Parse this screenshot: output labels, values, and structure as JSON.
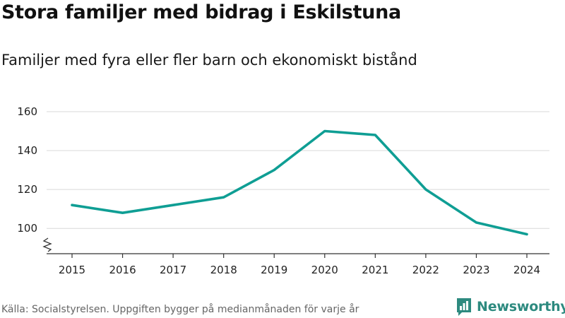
{
  "header": {
    "title": "Stora familjer med bidrag i Eskilstuna",
    "subtitle": "Familjer med fyra eller fler barn och ekonomiskt bistånd"
  },
  "footer": {
    "source": "Källa: Socialstyrelsen. Uppgiften bygger på medianmånaden för varje år",
    "brand": "Newsworthy"
  },
  "colors": {
    "line": "#0f9e94",
    "grid": "#d9d9d9",
    "axis": "#333333",
    "brand": "#2d8a7f"
  },
  "chart_data": {
    "type": "line",
    "title": "Stora familjer med bidrag i Eskilstuna",
    "subtitle": "Familjer med fyra eller fler barn och ekonomiskt bistånd",
    "xlabel": "",
    "ylabel": "",
    "x": [
      "2015",
      "2016",
      "2017",
      "2018",
      "2019",
      "2020",
      "2021",
      "2022",
      "2023",
      "2024"
    ],
    "series": [
      {
        "name": "Familjer",
        "values": [
          112,
          108,
          112,
          116,
          130,
          150,
          148,
          120,
          103,
          97
        ]
      }
    ],
    "yticks": [
      100,
      120,
      140,
      160
    ],
    "ylim": [
      87,
      160
    ],
    "grid": true,
    "axis_break": true
  }
}
